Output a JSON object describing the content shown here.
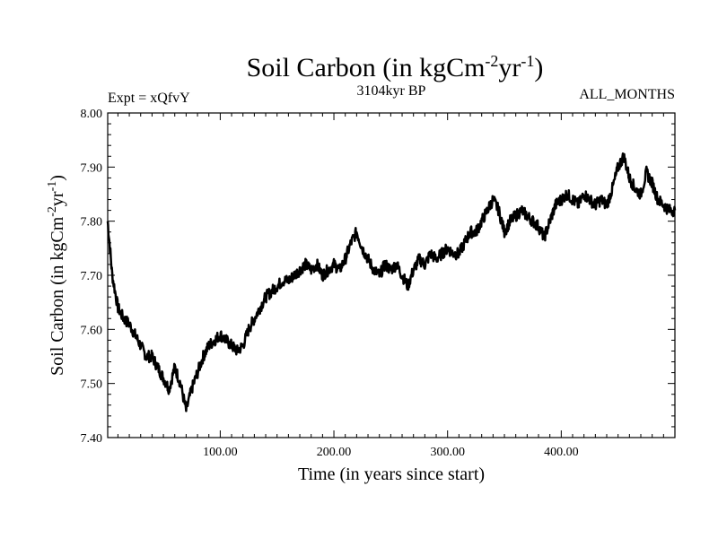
{
  "chart_data": {
    "type": "line",
    "title": {
      "main": "Soil Carbon (in kgCm",
      "sup1": "-2",
      "mid": "yr",
      "sup2": "-1",
      "end": ")"
    },
    "experiment": "Expt = xQfvY",
    "period": "3104kyr BP",
    "months": "ALL_MONTHS",
    "xlabel": "Time (in years since start)",
    "ylabel": {
      "main": "Soil Carbon (in kgCm",
      "sup1": "-2",
      "mid": "yr",
      "sup2": "-1",
      "end": ")"
    },
    "xlim": [
      1,
      500
    ],
    "ylim": [
      7.4,
      8.0
    ],
    "x_ticks": [
      100,
      200,
      300,
      400
    ],
    "x_tick_labels": [
      "100.00",
      "200.00",
      "300.00",
      "400.00"
    ],
    "y_ticks": [
      7.4,
      7.5,
      7.6,
      7.7,
      7.8,
      7.9,
      8.0
    ],
    "y_tick_labels": [
      "7.40",
      "7.50",
      "7.60",
      "7.70",
      "7.80",
      "7.90",
      "8.00"
    ],
    "series": [
      {
        "name": "Soil Carbon",
        "color": "#000000",
        "x": [
          1,
          5,
          10,
          15,
          20,
          25,
          30,
          35,
          40,
          45,
          50,
          55,
          60,
          65,
          70,
          75,
          80,
          85,
          90,
          95,
          100,
          105,
          110,
          115,
          120,
          125,
          130,
          135,
          140,
          145,
          150,
          155,
          160,
          165,
          170,
          175,
          180,
          185,
          190,
          195,
          200,
          205,
          210,
          215,
          220,
          225,
          230,
          235,
          240,
          245,
          250,
          255,
          260,
          265,
          270,
          275,
          280,
          285,
          290,
          295,
          300,
          305,
          310,
          315,
          320,
          325,
          330,
          335,
          340,
          345,
          350,
          355,
          360,
          365,
          370,
          375,
          380,
          385,
          390,
          395,
          400,
          405,
          410,
          415,
          420,
          425,
          430,
          435,
          440,
          445,
          450,
          455,
          460,
          465,
          470,
          475,
          480,
          485,
          490,
          495,
          500
        ],
        "values": [
          7.8,
          7.7,
          7.64,
          7.62,
          7.61,
          7.59,
          7.57,
          7.55,
          7.55,
          7.53,
          7.51,
          7.49,
          7.53,
          7.5,
          7.45,
          7.49,
          7.52,
          7.55,
          7.57,
          7.58,
          7.59,
          7.58,
          7.57,
          7.56,
          7.57,
          7.6,
          7.62,
          7.64,
          7.66,
          7.67,
          7.68,
          7.69,
          7.69,
          7.7,
          7.71,
          7.72,
          7.71,
          7.72,
          7.7,
          7.71,
          7.72,
          7.71,
          7.73,
          7.76,
          7.78,
          7.75,
          7.73,
          7.71,
          7.7,
          7.72,
          7.71,
          7.72,
          7.7,
          7.68,
          7.71,
          7.73,
          7.72,
          7.74,
          7.73,
          7.74,
          7.75,
          7.74,
          7.74,
          7.76,
          7.78,
          7.78,
          7.8,
          7.82,
          7.84,
          7.82,
          7.78,
          7.8,
          7.81,
          7.82,
          7.81,
          7.8,
          7.79,
          7.77,
          7.8,
          7.83,
          7.84,
          7.85,
          7.84,
          7.83,
          7.85,
          7.84,
          7.83,
          7.84,
          7.83,
          7.86,
          7.9,
          7.92,
          7.88,
          7.86,
          7.85,
          7.89,
          7.87,
          7.84,
          7.83,
          7.82,
          7.82
        ]
      }
    ]
  }
}
